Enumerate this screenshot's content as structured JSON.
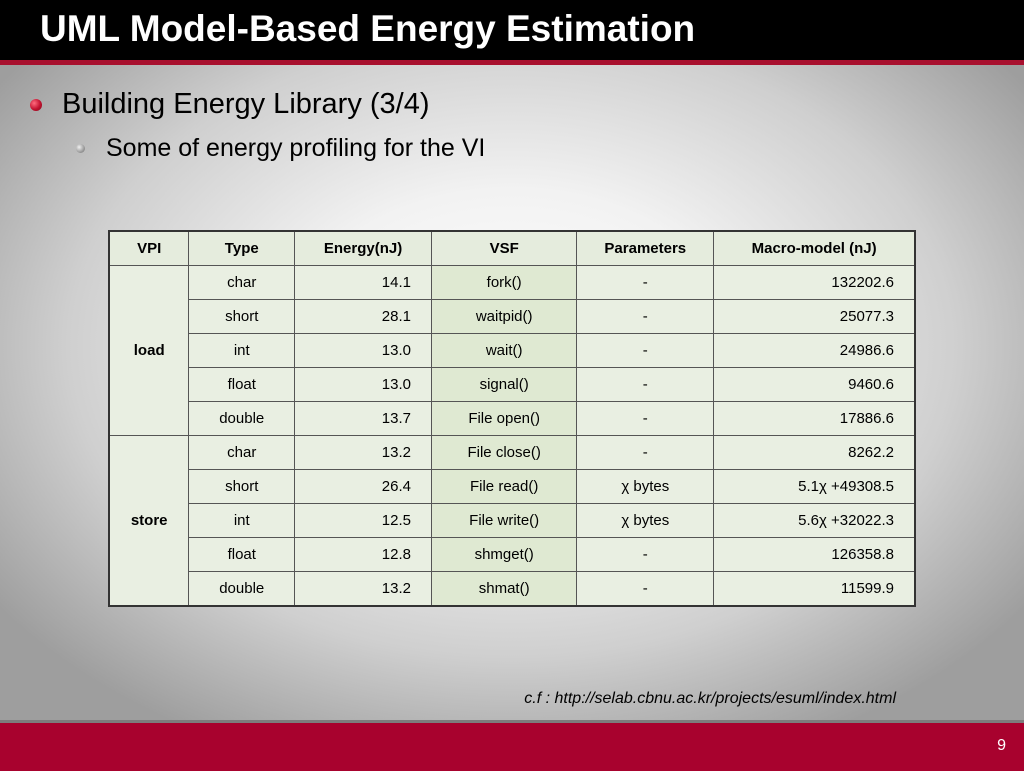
{
  "slide": {
    "title": "UML Model-Based Energy Estimation",
    "bullet1": "Building Energy Library (3/4)",
    "bullet2": "Some of energy profiling for the VI",
    "reference": "c.f : http://selab.cbnu.ac.kr/projects/esuml/index.html",
    "page_number": "9"
  },
  "colors": {
    "title_bar": "#000000",
    "accent": "#a8022e",
    "table_cell": "#e9efe2"
  },
  "table": {
    "headers": [
      "VPI",
      "Type",
      "Energy(nJ)",
      "VSF",
      "Parameters",
      "Macro-model (nJ)"
    ],
    "groups": [
      "load",
      "store"
    ],
    "rows": [
      {
        "type": "char",
        "energy": "14.1",
        "vsf": "fork()",
        "param": "-",
        "macro": "132202.6"
      },
      {
        "type": "short",
        "energy": "28.1",
        "vsf": "waitpid()",
        "param": "-",
        "macro": "25077.3"
      },
      {
        "type": "int",
        "energy": "13.0",
        "vsf": "wait()",
        "param": "-",
        "macro": "24986.6"
      },
      {
        "type": "float",
        "energy": "13.0",
        "vsf": "signal()",
        "param": "-",
        "macro": "9460.6"
      },
      {
        "type": "double",
        "energy": "13.7",
        "vsf": "File open()",
        "param": "-",
        "macro": "17886.6"
      },
      {
        "type": "char",
        "energy": "13.2",
        "vsf": "File close()",
        "param": "-",
        "macro": "8262.2"
      },
      {
        "type": "short",
        "energy": "26.4",
        "vsf": "File read()",
        "param": "χ bytes",
        "macro": "5.1χ +49308.5"
      },
      {
        "type": "int",
        "energy": "12.5",
        "vsf": "File write()",
        "param": "χ bytes",
        "macro": "5.6χ +32022.3"
      },
      {
        "type": "float",
        "energy": "12.8",
        "vsf": "shmget()",
        "param": "-",
        "macro": "126358.8"
      },
      {
        "type": "double",
        "energy": "13.2",
        "vsf": "shmat()",
        "param": "-",
        "macro": "11599.9"
      }
    ]
  }
}
